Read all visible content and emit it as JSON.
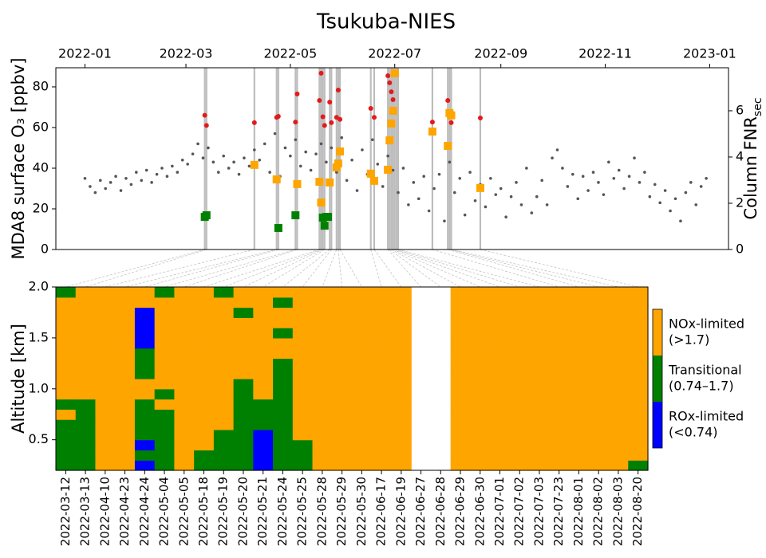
{
  "chart_data": [
    {
      "type": "scatter",
      "title": "Tsukuba-NIES",
      "ylabel": "MDA8 surface O₃ [ppbv]",
      "y2label": "Column FNR",
      "y2label_subscript": "sec",
      "xlim": [
        -17,
        376
      ],
      "xticks": [
        {
          "value": 0,
          "label": "2022-01"
        },
        {
          "value": 59,
          "label": "2022-03"
        },
        {
          "value": 120,
          "label": "2022-05"
        },
        {
          "value": 181,
          "label": "2022-07"
        },
        {
          "value": 243,
          "label": "2022-09"
        },
        {
          "value": 304,
          "label": "2022-11"
        },
        {
          "value": 365,
          "label": "2023-01"
        }
      ],
      "ylim": [
        0,
        89.4
      ],
      "yticks": [
        0,
        20,
        40,
        60,
        80
      ],
      "y2lim": [
        0,
        7.86
      ],
      "y2ticks": [
        0,
        2,
        4,
        6
      ],
      "series": [
        {
          "color": "#555555",
          "marker": "dot",
          "axis": "y",
          "x": [
            0,
            3,
            6,
            9,
            12,
            15,
            18,
            21,
            24,
            27,
            30,
            33,
            36,
            39,
            42,
            45,
            48,
            51,
            54,
            57,
            60,
            63,
            66,
            69,
            72,
            75,
            78,
            81,
            84,
            87,
            90,
            93,
            96,
            99,
            102,
            105,
            108,
            111,
            114,
            117,
            120,
            123,
            126,
            129,
            132,
            135,
            138,
            141,
            144,
            147,
            150,
            153,
            156,
            159,
            162,
            165,
            168,
            171,
            174,
            177,
            180,
            183,
            186,
            189,
            192,
            195,
            198,
            201,
            204,
            207,
            210,
            213,
            216,
            219,
            222,
            225,
            228,
            231,
            234,
            237,
            240,
            243,
            246,
            249,
            252,
            255,
            258,
            261,
            264,
            267,
            270,
            273,
            276,
            279,
            282,
            285,
            288,
            291,
            294,
            297,
            300,
            303,
            306,
            309,
            312,
            315,
            318,
            321,
            324,
            327,
            330,
            333,
            336,
            339,
            342,
            345,
            348,
            351,
            354,
            357,
            360,
            363
          ],
          "values": [
            35,
            31,
            28,
            34,
            30,
            33,
            36,
            29,
            35,
            32,
            38,
            34,
            39,
            33,
            37,
            40,
            36,
            41,
            38,
            44,
            42,
            47,
            52,
            45,
            50,
            43,
            38,
            46,
            40,
            43,
            37,
            45,
            41,
            49,
            44,
            52,
            38,
            57,
            36,
            50,
            46,
            54,
            41,
            48,
            39,
            47,
            52,
            43,
            50,
            38,
            55,
            34,
            44,
            29,
            49,
            37,
            54,
            42,
            31,
            46,
            39,
            28,
            40,
            22,
            33,
            25,
            36,
            19,
            30,
            37,
            14,
            43,
            28,
            35,
            17,
            38,
            24,
            32,
            21,
            35,
            27,
            30,
            16,
            26,
            33,
            22,
            40,
            18,
            26,
            34,
            22,
            45,
            49,
            40,
            31,
            37,
            25,
            36,
            29,
            38,
            33,
            27,
            43,
            35,
            39,
            30,
            36,
            45,
            33,
            38,
            26,
            32,
            23,
            29,
            19,
            25,
            14,
            28,
            33,
            22,
            31,
            35
          ]
        },
        {
          "color": "#e31a1c",
          "marker": "circle",
          "axis": "y",
          "x": [
            70,
            71,
            99,
            112,
            113,
            123,
            124,
            137,
            138,
            139,
            140,
            143,
            144,
            147,
            148,
            149,
            167,
            169,
            177,
            178,
            179,
            180,
            203,
            212,
            213,
            214,
            231
          ],
          "values": [
            66,
            61,
            62.4,
            65,
            65.5,
            62.7,
            76.5,
            73.3,
            86.7,
            65.3,
            61,
            72.5,
            62.4,
            65,
            78.4,
            64,
            69.4,
            65,
            85.5,
            82,
            77.6,
            73.7,
            62.7,
            73.3,
            67.8,
            62.4,
            64.7
          ]
        },
        {
          "color": "#ffa500",
          "marker": "square",
          "axis": "y2",
          "x": [
            99,
            112,
            124,
            137,
            138,
            143,
            147,
            148,
            149,
            167,
            169,
            177,
            178,
            179,
            180,
            181,
            203,
            212,
            213,
            214,
            231
          ],
          "values": [
            3.66,
            3.03,
            2.83,
            2.93,
            2.03,
            2.9,
            3.55,
            3.72,
            4.24,
            3.28,
            2.97,
            3.45,
            4.72,
            5.45,
            6.0,
            7.62,
            5.1,
            4.48,
            5.9,
            5.8,
            2.66
          ]
        },
        {
          "color": "#008000",
          "marker": "square",
          "axis": "y2",
          "x": [
            70,
            71,
            113,
            123,
            139,
            140,
            141,
            142
          ],
          "values": [
            1.41,
            1.48,
            0.93,
            1.48,
            1.38,
            1.03,
            1.41,
            1.41
          ]
        }
      ]
    },
    {
      "type": "heatmap",
      "ylabel": "Altitude [km]",
      "categories": [
        "2022-03-12",
        "2022-03-13",
        "2022-04-10",
        "2022-04-23",
        "2022-04-24",
        "2022-05-04",
        "2022-05-05",
        "2022-05-18",
        "2022-05-19",
        "2022-05-20",
        "2022-05-21",
        "2022-05-24",
        "2022-05-25",
        "2022-05-28",
        "2022-05-29",
        "2022-05-30",
        "2022-06-17",
        "2022-06-19",
        "2022-06-27",
        "2022-06-28",
        "2022-06-29",
        "2022-06-30",
        "2022-07-01",
        "2022-07-02",
        "2022-07-03",
        "2022-07-23",
        "2022-08-01",
        "2022-08-02",
        "2022-08-03",
        "2022-08-20"
      ],
      "ylim": [
        0.2,
        2.0
      ],
      "yticks": [
        0.5,
        {
          "value": 1,
          "label": "1.0"
        },
        1.5,
        {
          "value": 2,
          "label": "2.0"
        }
      ],
      "y_bins": [
        0.2,
        0.3,
        0.4,
        0.5,
        0.6,
        0.7,
        0.8,
        0.9,
        1.0,
        1.1,
        1.2,
        1.3,
        1.4,
        1.5,
        1.6,
        1.7,
        1.8,
        1.9,
        2.0
      ],
      "z": [
        [
          1,
          1,
          2,
          2,
          0,
          1,
          2,
          1,
          1,
          1,
          0,
          1,
          1,
          2,
          2,
          2,
          2,
          2,
          null,
          null,
          2,
          2,
          2,
          2,
          2,
          2,
          2,
          2,
          2,
          1
        ],
        [
          1,
          1,
          2,
          2,
          1,
          1,
          2,
          1,
          1,
          1,
          0,
          1,
          1,
          2,
          2,
          2,
          2,
          2,
          null,
          null,
          2,
          2,
          2,
          2,
          2,
          2,
          2,
          2,
          2,
          2
        ],
        [
          1,
          1,
          2,
          2,
          0,
          1,
          2,
          2,
          1,
          1,
          0,
          1,
          1,
          2,
          2,
          2,
          2,
          2,
          null,
          null,
          2,
          2,
          2,
          2,
          2,
          2,
          2,
          2,
          2,
          2
        ],
        [
          1,
          1,
          2,
          2,
          1,
          1,
          2,
          2,
          1,
          1,
          0,
          1,
          2,
          2,
          2,
          2,
          2,
          2,
          null,
          null,
          2,
          2,
          2,
          2,
          2,
          2,
          2,
          2,
          2,
          2
        ],
        [
          1,
          1,
          2,
          2,
          1,
          1,
          2,
          2,
          2,
          1,
          1,
          1,
          2,
          2,
          2,
          2,
          2,
          2,
          null,
          null,
          2,
          2,
          2,
          2,
          2,
          2,
          2,
          2,
          2,
          2
        ],
        [
          2,
          1,
          2,
          2,
          1,
          1,
          2,
          2,
          2,
          1,
          1,
          1,
          2,
          2,
          2,
          2,
          2,
          2,
          null,
          null,
          2,
          2,
          2,
          2,
          2,
          2,
          2,
          2,
          2,
          2
        ],
        [
          1,
          1,
          2,
          2,
          1,
          2,
          2,
          2,
          2,
          1,
          1,
          1,
          2,
          2,
          2,
          2,
          2,
          2,
          null,
          null,
          2,
          2,
          2,
          2,
          2,
          2,
          2,
          2,
          2,
          2
        ],
        [
          2,
          2,
          2,
          2,
          2,
          1,
          2,
          2,
          2,
          1,
          2,
          1,
          2,
          2,
          2,
          2,
          2,
          2,
          null,
          null,
          2,
          2,
          2,
          2,
          2,
          2,
          2,
          2,
          2,
          2
        ],
        [
          2,
          2,
          2,
          2,
          2,
          2,
          2,
          2,
          2,
          1,
          2,
          1,
          2,
          2,
          2,
          2,
          2,
          2,
          null,
          null,
          2,
          2,
          2,
          2,
          2,
          2,
          2,
          2,
          2,
          2
        ],
        [
          2,
          2,
          2,
          2,
          1,
          2,
          2,
          2,
          2,
          2,
          2,
          1,
          2,
          2,
          2,
          2,
          2,
          2,
          null,
          null,
          2,
          2,
          2,
          2,
          2,
          2,
          2,
          2,
          2,
          2
        ],
        [
          2,
          2,
          2,
          2,
          1,
          2,
          2,
          2,
          2,
          2,
          2,
          1,
          2,
          2,
          2,
          2,
          2,
          2,
          null,
          null,
          2,
          2,
          2,
          2,
          2,
          2,
          2,
          2,
          2,
          2
        ],
        [
          2,
          2,
          2,
          2,
          1,
          2,
          2,
          2,
          2,
          2,
          2,
          2,
          2,
          2,
          2,
          2,
          2,
          2,
          null,
          null,
          2,
          2,
          2,
          2,
          2,
          2,
          2,
          2,
          2,
          2
        ],
        [
          2,
          2,
          2,
          2,
          0,
          2,
          2,
          2,
          2,
          2,
          2,
          2,
          2,
          2,
          2,
          2,
          2,
          2,
          null,
          null,
          2,
          2,
          2,
          2,
          2,
          2,
          2,
          2,
          2,
          2
        ],
        [
          2,
          2,
          2,
          2,
          0,
          2,
          2,
          2,
          2,
          2,
          2,
          1,
          2,
          2,
          2,
          2,
          2,
          2,
          null,
          null,
          2,
          2,
          2,
          2,
          2,
          2,
          2,
          2,
          2,
          2
        ],
        [
          2,
          2,
          2,
          2,
          0,
          2,
          2,
          2,
          2,
          2,
          2,
          2,
          2,
          2,
          2,
          2,
          2,
          2,
          null,
          null,
          2,
          2,
          2,
          2,
          2,
          2,
          2,
          2,
          2,
          2
        ],
        [
          2,
          2,
          2,
          2,
          0,
          2,
          2,
          2,
          2,
          1,
          2,
          2,
          2,
          2,
          2,
          2,
          2,
          2,
          null,
          null,
          2,
          2,
          2,
          2,
          2,
          2,
          2,
          2,
          2,
          2
        ],
        [
          2,
          2,
          2,
          2,
          2,
          2,
          2,
          2,
          2,
          2,
          2,
          1,
          2,
          2,
          2,
          2,
          2,
          2,
          null,
          null,
          2,
          2,
          2,
          2,
          2,
          2,
          2,
          2,
          2,
          2
        ],
        [
          1,
          2,
          2,
          2,
          2,
          1,
          2,
          2,
          1,
          2,
          2,
          2,
          2,
          2,
          2,
          2,
          2,
          2,
          null,
          null,
          2,
          2,
          2,
          2,
          2,
          2,
          2,
          2,
          2,
          2
        ]
      ],
      "colorbar": {
        "colors": [
          "#0000ff",
          "#008000",
          "#ffa500"
        ],
        "labels": [
          [
            "ROx-limited",
            "(<0.74)"
          ],
          [
            "Transitional",
            "(0.74–1.7)"
          ],
          [
            "NOx-limited",
            "(>1.7)"
          ]
        ]
      }
    }
  ]
}
